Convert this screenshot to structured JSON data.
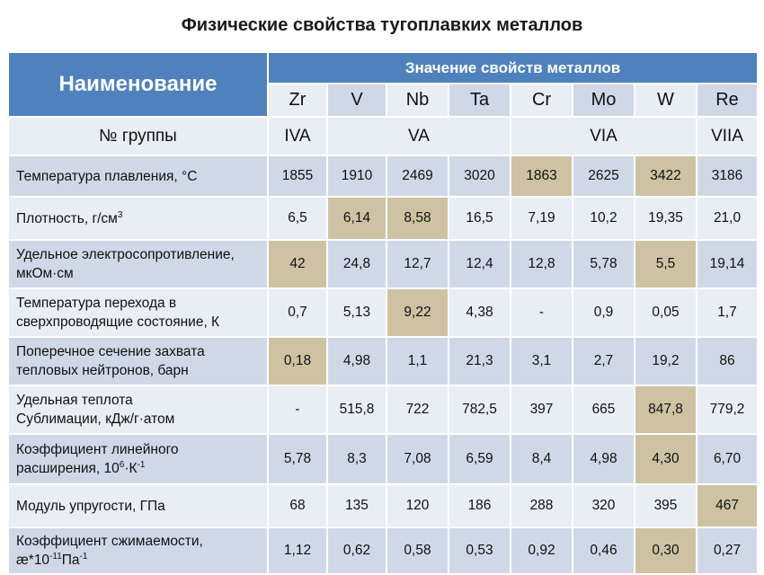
{
  "title": "Физические свойства тугоплавких металлов",
  "header": {
    "name": "Наименование",
    "values": "Значение свойств металлов"
  },
  "metals": [
    "Zr",
    "V",
    "Nb",
    "Ta",
    "Cr",
    "Mo",
    "W",
    "Re"
  ],
  "group": {
    "label": "№ группы",
    "cells": [
      {
        "text": "IVA",
        "span": 1
      },
      {
        "text": "VA",
        "span": 3
      },
      {
        "text": "VIA",
        "span": 3
      },
      {
        "text": "VIIA",
        "span": 1
      }
    ]
  },
  "rows": [
    {
      "label_lines": [
        "Температура плавления, °С"
      ],
      "values": [
        "1855",
        "1910",
        "2469",
        "3020",
        "1863",
        "2625",
        "3422",
        "3186"
      ],
      "highlight": [
        4,
        6
      ]
    },
    {
      "label_lines": [
        "Плотность, г/см"
      ],
      "label_sup": "3",
      "values": [
        "6,5",
        "6,14",
        "8,58",
        "16,5",
        "7,19",
        "10,2",
        "19,35",
        "21,0"
      ],
      "highlight": [
        1,
        2
      ]
    },
    {
      "label_lines": [
        "Удельное электросопротивление,",
        "мкОм·см"
      ],
      "values": [
        "42",
        "24,8",
        "12,7",
        "12,4",
        "12,8",
        "5,78",
        "5,5",
        "19,14"
      ],
      "highlight": [
        0,
        6
      ]
    },
    {
      "label_lines": [
        "Температура перехода в",
        "сверхпроводящие состояние, К"
      ],
      "values": [
        "0,7",
        "5,13",
        "9,22",
        "4,38",
        "-",
        "0,9",
        "0,05",
        "1,7"
      ],
      "highlight": [
        2
      ]
    },
    {
      "label_lines": [
        "Поперечное сечение захвата",
        "тепловых нейтронов, барн"
      ],
      "values": [
        "0,18",
        "4,98",
        "1,1",
        "21,3",
        "3,1",
        "2,7",
        "19,2",
        "86"
      ],
      "highlight": [
        0
      ]
    },
    {
      "label_lines": [
        "Удельная теплота",
        "Сублимации, кДж/г·атом"
      ],
      "values": [
        "-",
        "515,8",
        "722",
        "782,5",
        "397",
        "665",
        "847,8",
        "779,2"
      ],
      "highlight": [
        6
      ]
    },
    {
      "label_lines": [
        "Коэффициент линейного",
        "расширения, 10"
      ],
      "label_sup_parts": [
        "6",
        "·К",
        "-1"
      ],
      "values": [
        "5,78",
        "8,3",
        "7,08",
        "6,59",
        "8,4",
        "4,98",
        "4,30",
        "6,70"
      ],
      "highlight": [
        6
      ]
    },
    {
      "label_lines": [
        "Модуль упругости, ГПа"
      ],
      "values": [
        "68",
        "135",
        "120",
        "186",
        "288",
        "320",
        "395",
        "467"
      ],
      "highlight": [
        7
      ]
    },
    {
      "label_lines": [
        "Коэффициент сжимаемости,",
        "æ*10"
      ],
      "label_sup_parts": [
        "-11",
        "Па",
        "-1"
      ],
      "values": [
        "1,12",
        "0,62",
        "0,58",
        "0,53",
        "0,92",
        "0,46",
        "0,30",
        "0,27"
      ],
      "highlight": [
        6
      ]
    }
  ],
  "colors": {
    "header": "#4f81bd",
    "row_light": "#e9edf4",
    "row_dark": "#d0d8e8",
    "highlight": "#cdc3a2"
  }
}
